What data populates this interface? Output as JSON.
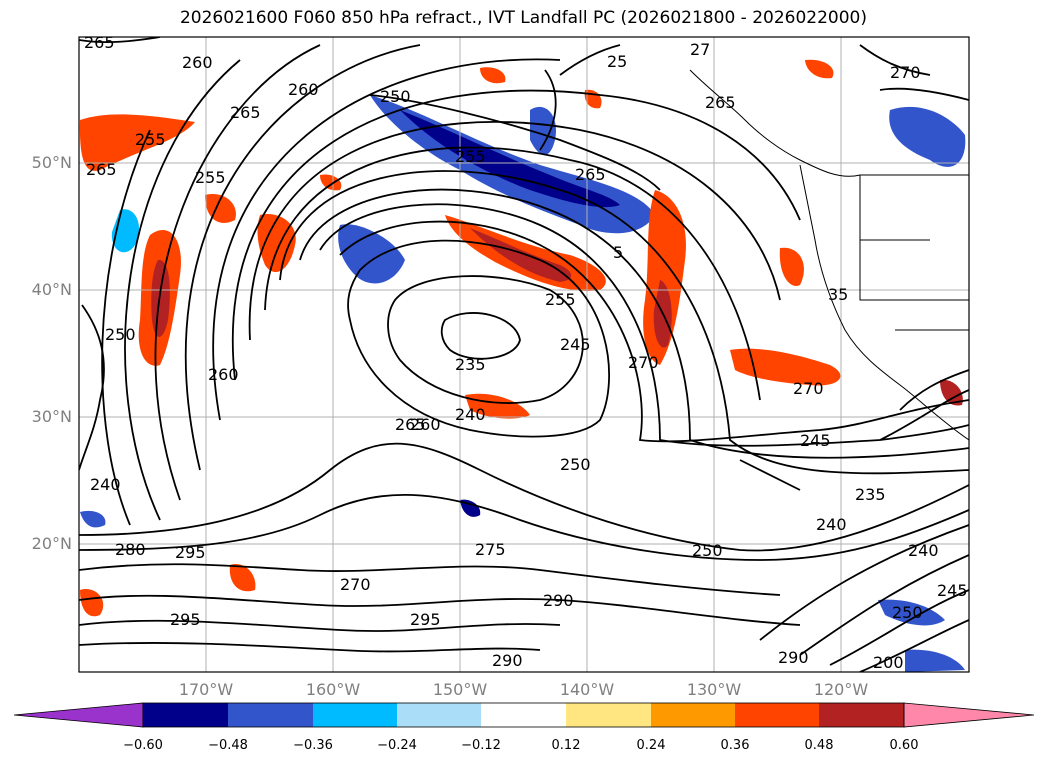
{
  "title": "2026021600 F060 850 hPa refract., IVT Landfall PC (2026021800 - 2026022000)",
  "map": {
    "lat_labels": [
      "50°N",
      "40°N",
      "30°N",
      "20°N"
    ],
    "lon_labels": [
      "170°W",
      "160°W",
      "150°W",
      "140°W",
      "130°W",
      "120°W"
    ],
    "contour_labels": [
      "265",
      "260",
      "265",
      "265",
      "255",
      "255",
      "260",
      "250",
      "255",
      "265",
      "27",
      "25",
      "270",
      "265",
      "250",
      "255",
      "260",
      "260",
      "235",
      "240",
      "245",
      "5",
      "35",
      "250",
      "265",
      "270",
      "270",
      "245",
      "240",
      "235",
      "250",
      "240",
      "280",
      "295",
      "275",
      "240",
      "270",
      "290",
      "295",
      "295",
      "290",
      "290",
      "245",
      "250",
      "200"
    ]
  },
  "colorbar": {
    "ticks": [
      "−0.60",
      "−0.48",
      "−0.36",
      "−0.24",
      "−0.12",
      "0.12",
      "0.24",
      "0.36",
      "0.48",
      "0.60"
    ],
    "colors": [
      "#9933cc",
      "#00008b",
      "#3355cc",
      "#00bbff",
      "#aaddf7",
      "#ffffff",
      "#ffe680",
      "#ff9900",
      "#ff4400",
      "#b22222",
      "#ff88aa"
    ]
  }
}
